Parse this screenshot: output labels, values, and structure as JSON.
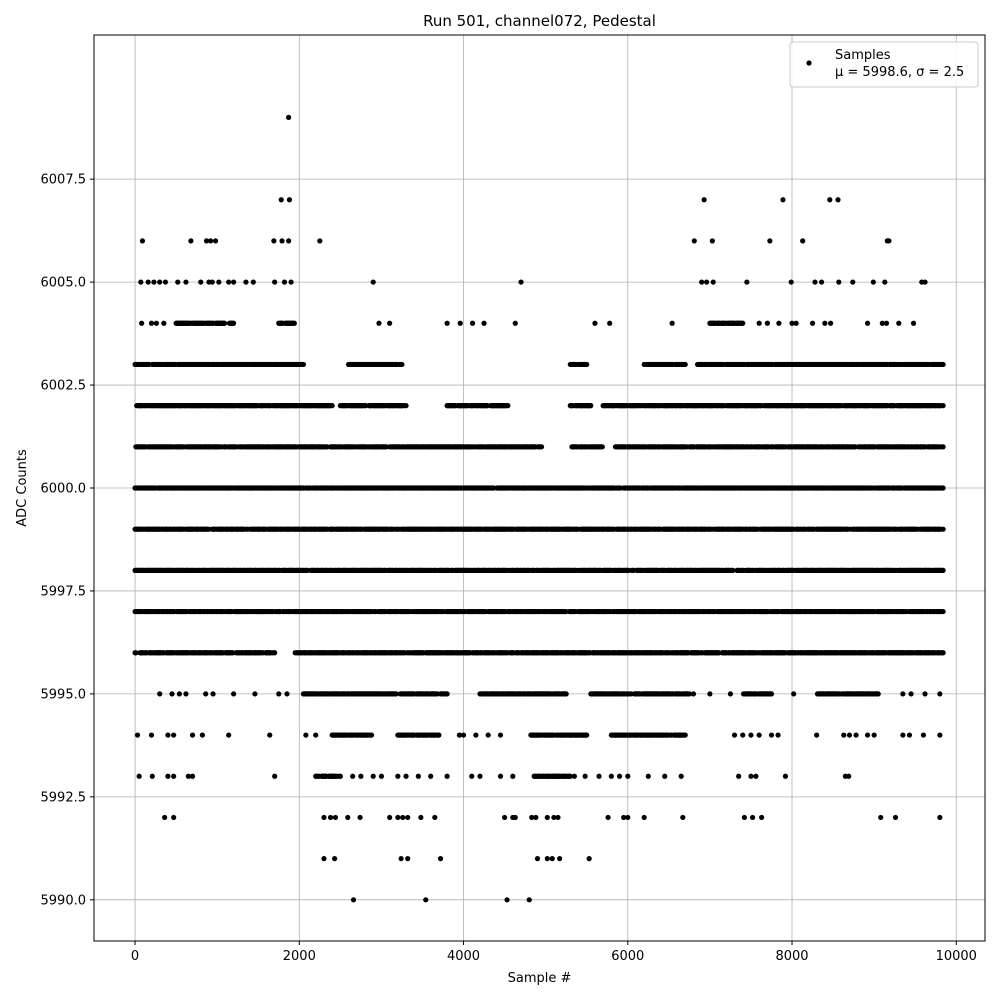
{
  "chart_data": {
    "type": "scatter",
    "title": "Run 501, channel072, Pedestal",
    "xlabel": "Sample #",
    "ylabel": "ADC Counts",
    "xlim": [
      -500,
      10350
    ],
    "ylim": [
      5989.0,
      6011.0
    ],
    "xticks": [
      0,
      2000,
      4000,
      6000,
      8000,
      10000
    ],
    "xtick_labels": [
      "0",
      "2000",
      "4000",
      "6000",
      "8000",
      "10000"
    ],
    "yticks": [
      5990.0,
      5992.5,
      5995.0,
      5997.5,
      6000.0,
      6002.5,
      6005.0,
      6007.5
    ],
    "ytick_labels": [
      "5990.0",
      "5992.5",
      "5995.0",
      "5997.5",
      "6000.0",
      "6002.5",
      "6005.0",
      "6007.5"
    ],
    "grid": true,
    "legend_position": "top-right",
    "legend": {
      "label": "Samples",
      "stats": "μ = 5998.6, σ = 2.5"
    },
    "marker_color": "#000000",
    "series": [
      {
        "name": "Samples",
        "bands": [
          {
            "y": 6000,
            "ranges": [
              [
                0,
                9840
              ]
            ]
          },
          {
            "y": 5999,
            "ranges": [
              [
                0,
                9840
              ]
            ]
          },
          {
            "y": 5998,
            "ranges": [
              [
                0,
                9840
              ]
            ]
          },
          {
            "y": 5997,
            "ranges": [
              [
                0,
                9840
              ]
            ]
          },
          {
            "y": 6001,
            "ranges": [
              [
                0,
                4950
              ],
              [
                5300,
                5700
              ],
              [
                5850,
                9840
              ]
            ]
          },
          {
            "y": 6002,
            "ranges": [
              [
                0,
                2400
              ],
              [
                2500,
                3300
              ],
              [
                3800,
                4550
              ],
              [
                5300,
                5550
              ],
              [
                5700,
                9840
              ]
            ]
          },
          {
            "y": 5996,
            "ranges": [
              [
                0,
                1700
              ],
              [
                1950,
                9840
              ]
            ]
          },
          {
            "y": 6003,
            "ranges": [
              [
                0,
                2050
              ],
              [
                2600,
                3250
              ],
              [
                5300,
                5500
              ],
              [
                6200,
                6700
              ],
              [
                6850,
                9840
              ]
            ]
          },
          {
            "y": 5995,
            "ranges": [
              [
                2050,
                3800
              ],
              [
                4200,
                5250
              ],
              [
                5550,
                6750
              ],
              [
                7400,
                7750
              ],
              [
                8300,
                9050
              ]
            ]
          },
          {
            "y": 6004,
            "ranges": [
              [
                500,
                1200
              ],
              [
                1750,
                1950
              ],
              [
                7000,
                7400
              ]
            ]
          },
          {
            "y": 5994,
            "ranges": [
              [
                2400,
                2900
              ],
              [
                3200,
                3700
              ],
              [
                4800,
                5500
              ],
              [
                5800,
                6700
              ]
            ]
          },
          {
            "y": 5993,
            "ranges": [
              [
                2200,
                2500
              ],
              [
                4850,
                5300
              ]
            ]
          }
        ],
        "points": [
          [
            1870,
            6009
          ],
          [
            1780,
            6007
          ],
          [
            1880,
            6007
          ],
          [
            6930,
            6007
          ],
          [
            7890,
            6007
          ],
          [
            8460,
            6007
          ],
          [
            8560,
            6007
          ],
          [
            90,
            6006
          ],
          [
            680,
            6006
          ],
          [
            870,
            6006
          ],
          [
            920,
            6006
          ],
          [
            980,
            6006
          ],
          [
            1690,
            6006
          ],
          [
            1790,
            6006
          ],
          [
            1870,
            6006
          ],
          [
            2250,
            6006
          ],
          [
            6810,
            6006
          ],
          [
            7030,
            6006
          ],
          [
            7730,
            6006
          ],
          [
            8130,
            6006
          ],
          [
            9160,
            6006
          ],
          [
            9180,
            6006
          ],
          [
            70,
            6005
          ],
          [
            160,
            6005
          ],
          [
            230,
            6005
          ],
          [
            300,
            6005
          ],
          [
            370,
            6005
          ],
          [
            520,
            6005
          ],
          [
            620,
            6005
          ],
          [
            800,
            6005
          ],
          [
            900,
            6005
          ],
          [
            940,
            6005
          ],
          [
            1020,
            6005
          ],
          [
            1140,
            6005
          ],
          [
            1200,
            6005
          ],
          [
            1350,
            6005
          ],
          [
            1440,
            6005
          ],
          [
            1700,
            6005
          ],
          [
            1820,
            6005
          ],
          [
            1900,
            6005
          ],
          [
            2900,
            6005
          ],
          [
            4700,
            6005
          ],
          [
            6900,
            6005
          ],
          [
            6960,
            6005
          ],
          [
            7040,
            6005
          ],
          [
            7450,
            6005
          ],
          [
            7990,
            6005
          ],
          [
            8280,
            6005
          ],
          [
            8360,
            6005
          ],
          [
            8570,
            6005
          ],
          [
            8740,
            6005
          ],
          [
            8990,
            6005
          ],
          [
            9130,
            6005
          ],
          [
            9580,
            6005
          ],
          [
            9620,
            6005
          ],
          [
            80,
            6004
          ],
          [
            200,
            6004
          ],
          [
            260,
            6004
          ],
          [
            350,
            6004
          ],
          [
            2970,
            6004
          ],
          [
            3100,
            6004
          ],
          [
            3800,
            6004
          ],
          [
            3960,
            6004
          ],
          [
            4110,
            6004
          ],
          [
            4250,
            6004
          ],
          [
            4630,
            6004
          ],
          [
            5600,
            6004
          ],
          [
            5780,
            6004
          ],
          [
            6540,
            6004
          ],
          [
            7600,
            6004
          ],
          [
            7700,
            6004
          ],
          [
            7840,
            6004
          ],
          [
            8000,
            6004
          ],
          [
            8050,
            6004
          ],
          [
            8250,
            6004
          ],
          [
            8400,
            6004
          ],
          [
            8470,
            6004
          ],
          [
            8920,
            6004
          ],
          [
            9100,
            6004
          ],
          [
            9150,
            6004
          ],
          [
            9300,
            6004
          ],
          [
            9480,
            6004
          ],
          [
            300,
            5995
          ],
          [
            450,
            5995
          ],
          [
            540,
            5995
          ],
          [
            620,
            5995
          ],
          [
            860,
            5995
          ],
          [
            950,
            5995
          ],
          [
            1200,
            5995
          ],
          [
            1460,
            5995
          ],
          [
            1750,
            5995
          ],
          [
            1850,
            5995
          ],
          [
            6800,
            5995
          ],
          [
            7000,
            5995
          ],
          [
            7250,
            5995
          ],
          [
            8020,
            5995
          ],
          [
            9350,
            5995
          ],
          [
            9450,
            5995
          ],
          [
            9620,
            5995
          ],
          [
            9800,
            5995
          ],
          [
            30,
            5994
          ],
          [
            200,
            5994
          ],
          [
            400,
            5994
          ],
          [
            470,
            5994
          ],
          [
            700,
            5994
          ],
          [
            820,
            5994
          ],
          [
            1140,
            5994
          ],
          [
            1640,
            5994
          ],
          [
            2080,
            5994
          ],
          [
            2200,
            5994
          ],
          [
            3950,
            5994
          ],
          [
            4000,
            5994
          ],
          [
            4150,
            5994
          ],
          [
            4300,
            5994
          ],
          [
            4450,
            5994
          ],
          [
            7300,
            5994
          ],
          [
            7400,
            5994
          ],
          [
            7500,
            5994
          ],
          [
            7600,
            5994
          ],
          [
            7750,
            5994
          ],
          [
            7830,
            5994
          ],
          [
            8300,
            5994
          ],
          [
            8630,
            5994
          ],
          [
            8700,
            5994
          ],
          [
            8780,
            5994
          ],
          [
            8920,
            5994
          ],
          [
            9000,
            5994
          ],
          [
            9350,
            5994
          ],
          [
            9430,
            5994
          ],
          [
            9600,
            5994
          ],
          [
            9800,
            5994
          ],
          [
            50,
            5993
          ],
          [
            210,
            5993
          ],
          [
            400,
            5993
          ],
          [
            470,
            5993
          ],
          [
            650,
            5993
          ],
          [
            700,
            5993
          ],
          [
            1700,
            5993
          ],
          [
            2650,
            5993
          ],
          [
            2750,
            5993
          ],
          [
            2900,
            5993
          ],
          [
            3000,
            5993
          ],
          [
            3200,
            5993
          ],
          [
            3300,
            5993
          ],
          [
            3450,
            5993
          ],
          [
            3600,
            5993
          ],
          [
            3800,
            5993
          ],
          [
            4100,
            5993
          ],
          [
            4200,
            5993
          ],
          [
            4450,
            5993
          ],
          [
            4600,
            5993
          ],
          [
            5350,
            5993
          ],
          [
            5480,
            5993
          ],
          [
            5650,
            5993
          ],
          [
            5800,
            5993
          ],
          [
            5900,
            5993
          ],
          [
            6000,
            5993
          ],
          [
            6250,
            5993
          ],
          [
            6450,
            5993
          ],
          [
            6650,
            5993
          ],
          [
            7350,
            5993
          ],
          [
            7500,
            5993
          ],
          [
            7560,
            5993
          ],
          [
            7920,
            5993
          ],
          [
            8650,
            5993
          ],
          [
            8690,
            5993
          ],
          [
            360,
            5992
          ],
          [
            470,
            5992
          ],
          [
            2300,
            5992
          ],
          [
            2380,
            5992
          ],
          [
            2440,
            5992
          ],
          [
            2590,
            5992
          ],
          [
            2740,
            5992
          ],
          [
            3100,
            5992
          ],
          [
            3200,
            5992
          ],
          [
            3260,
            5992
          ],
          [
            3320,
            5992
          ],
          [
            3480,
            5992
          ],
          [
            3650,
            5992
          ],
          [
            4500,
            5992
          ],
          [
            4600,
            5992
          ],
          [
            4630,
            5992
          ],
          [
            4830,
            5992
          ],
          [
            4880,
            5992
          ],
          [
            5020,
            5992
          ],
          [
            5100,
            5992
          ],
          [
            5150,
            5992
          ],
          [
            5760,
            5992
          ],
          [
            5950,
            5992
          ],
          [
            6000,
            5992
          ],
          [
            6200,
            5992
          ],
          [
            6670,
            5992
          ],
          [
            7420,
            5992
          ],
          [
            7520,
            5992
          ],
          [
            7630,
            5992
          ],
          [
            9080,
            5992
          ],
          [
            9260,
            5992
          ],
          [
            9800,
            5992
          ],
          [
            2300,
            5991
          ],
          [
            2430,
            5991
          ],
          [
            3240,
            5991
          ],
          [
            3320,
            5991
          ],
          [
            3720,
            5991
          ],
          [
            4900,
            5991
          ],
          [
            5020,
            5991
          ],
          [
            5080,
            5991
          ],
          [
            5170,
            5991
          ],
          [
            5530,
            5991
          ],
          [
            2660,
            5990
          ],
          [
            3540,
            5990
          ],
          [
            4530,
            5990
          ],
          [
            4800,
            5990
          ]
        ]
      }
    ]
  }
}
